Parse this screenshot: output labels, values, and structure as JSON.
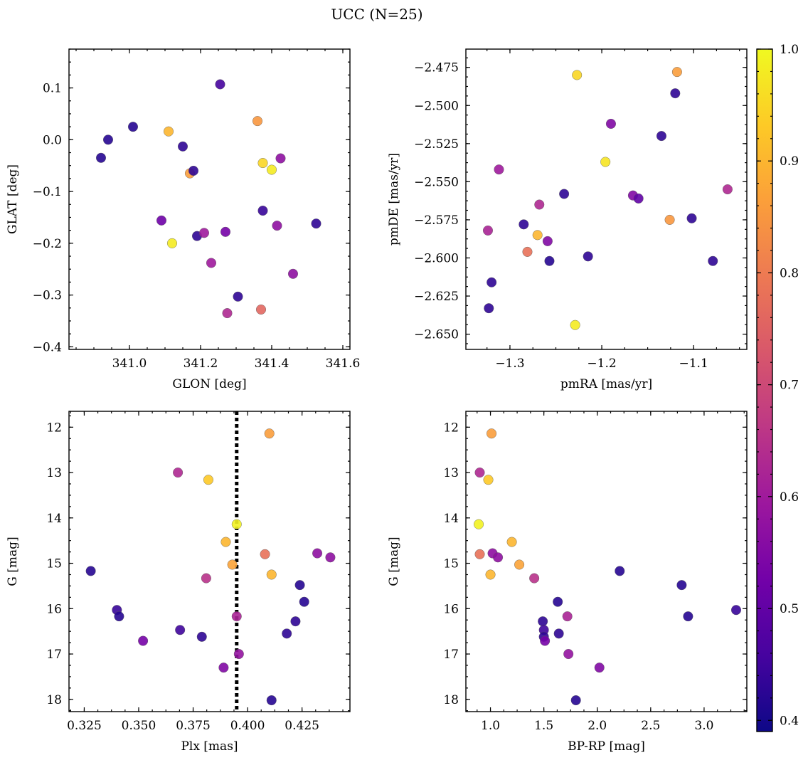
{
  "title": "UCC (N=25)",
  "colorbar": {
    "range": [
      0.39,
      1.0
    ],
    "ticks": [
      0.4,
      0.5,
      0.6,
      0.7,
      0.8,
      0.9,
      1.0
    ],
    "tick_labels": [
      "0.4",
      "0.5",
      "0.6",
      "0.7",
      "0.8",
      "0.9",
      "1.0"
    ],
    "colormap": "plasma"
  },
  "chart_data": [
    {
      "type": "scatter",
      "id": "glon-glat",
      "xlabel": "GLON [deg]",
      "ylabel": "GLAT [deg]",
      "xlim": [
        340.83,
        341.62
      ],
      "ylim": [
        -0.405,
        0.175
      ],
      "xticks": [
        341.0,
        341.2,
        341.4,
        341.6
      ],
      "xtick_labels": [
        "341.0",
        "341.2",
        "341.4",
        "341.6"
      ],
      "yticks": [
        -0.4,
        -0.3,
        -0.2,
        -0.1,
        0.0,
        0.1
      ],
      "ytick_labels": [
        "−0.4",
        "−0.3",
        "−0.2",
        "−0.1",
        "0.0",
        "0.1"
      ],
      "points": [
        {
          "x": 340.92,
          "y": -0.035,
          "c": 0.42
        },
        {
          "x": 340.94,
          "y": 0.0,
          "c": 0.42
        },
        {
          "x": 341.01,
          "y": 0.025,
          "c": 0.42
        },
        {
          "x": 341.09,
          "y": -0.156,
          "c": 0.52
        },
        {
          "x": 341.11,
          "y": 0.016,
          "c": 0.9
        },
        {
          "x": 341.12,
          "y": -0.2,
          "c": 0.98
        },
        {
          "x": 341.15,
          "y": -0.013,
          "c": 0.43
        },
        {
          "x": 341.17,
          "y": -0.065,
          "c": 0.86
        },
        {
          "x": 341.18,
          "y": -0.06,
          "c": 0.43
        },
        {
          "x": 341.19,
          "y": -0.186,
          "c": 0.43
        },
        {
          "x": 341.21,
          "y": -0.18,
          "c": 0.6
        },
        {
          "x": 341.23,
          "y": -0.238,
          "c": 0.6
        },
        {
          "x": 341.255,
          "y": 0.107,
          "c": 0.46
        },
        {
          "x": 341.27,
          "y": -0.178,
          "c": 0.53
        },
        {
          "x": 341.275,
          "y": -0.335,
          "c": 0.63
        },
        {
          "x": 341.305,
          "y": -0.303,
          "c": 0.43
        },
        {
          "x": 341.36,
          "y": 0.036,
          "c": 0.85
        },
        {
          "x": 341.37,
          "y": -0.328,
          "c": 0.76
        },
        {
          "x": 341.375,
          "y": -0.045,
          "c": 0.95
        },
        {
          "x": 341.375,
          "y": -0.137,
          "c": 0.44
        },
        {
          "x": 341.4,
          "y": -0.058,
          "c": 0.98
        },
        {
          "x": 341.415,
          "y": -0.166,
          "c": 0.57
        },
        {
          "x": 341.425,
          "y": -0.036,
          "c": 0.57
        },
        {
          "x": 341.46,
          "y": -0.259,
          "c": 0.57
        },
        {
          "x": 341.525,
          "y": -0.162,
          "c": 0.43
        }
      ]
    },
    {
      "type": "scatter",
      "id": "pmra-pmde",
      "xlabel": "pmRA [mas/yr]",
      "ylabel": "pmDE [mas/yr]",
      "xlim": [
        -1.348,
        -1.042
      ],
      "ylim": [
        -2.66,
        -2.463
      ],
      "xticks": [
        -1.3,
        -1.2,
        -1.1
      ],
      "xtick_labels": [
        "−1.3",
        "−1.2",
        "−1.1"
      ],
      "yticks": [
        -2.65,
        -2.625,
        -2.6,
        -2.575,
        -2.55,
        -2.525,
        -2.5,
        -2.475
      ],
      "ytick_labels": [
        "−2.650",
        "−2.625",
        "−2.600",
        "−2.575",
        "−2.550",
        "−2.525",
        "−2.500",
        "−2.475"
      ],
      "points": [
        {
          "x": -1.324,
          "y": -2.582,
          "c": 0.62
        },
        {
          "x": -1.323,
          "y": -2.633,
          "c": 0.43
        },
        {
          "x": -1.32,
          "y": -2.616,
          "c": 0.43
        },
        {
          "x": -1.312,
          "y": -2.542,
          "c": 0.6
        },
        {
          "x": -1.285,
          "y": -2.578,
          "c": 0.43
        },
        {
          "x": -1.281,
          "y": -2.596,
          "c": 0.78
        },
        {
          "x": -1.27,
          "y": -2.585,
          "c": 0.9
        },
        {
          "x": -1.268,
          "y": -2.565,
          "c": 0.63
        },
        {
          "x": -1.259,
          "y": -2.589,
          "c": 0.55
        },
        {
          "x": -1.257,
          "y": -2.602,
          "c": 0.42
        },
        {
          "x": -1.241,
          "y": -2.558,
          "c": 0.43
        },
        {
          "x": -1.227,
          "y": -2.48,
          "c": 0.95
        },
        {
          "x": -1.229,
          "y": -2.644,
          "c": 0.98
        },
        {
          "x": -1.215,
          "y": -2.599,
          "c": 0.43
        },
        {
          "x": -1.196,
          "y": -2.537,
          "c": 0.97
        },
        {
          "x": -1.19,
          "y": -2.512,
          "c": 0.55
        },
        {
          "x": -1.166,
          "y": -2.559,
          "c": 0.55
        },
        {
          "x": -1.16,
          "y": -2.561,
          "c": 0.5
        },
        {
          "x": -1.135,
          "y": -2.52,
          "c": 0.43
        },
        {
          "x": -1.126,
          "y": -2.575,
          "c": 0.85
        },
        {
          "x": -1.12,
          "y": -2.492,
          "c": 0.43
        },
        {
          "x": -1.118,
          "y": -2.478,
          "c": 0.86
        },
        {
          "x": -1.102,
          "y": -2.574,
          "c": 0.43
        },
        {
          "x": -1.079,
          "y": -2.602,
          "c": 0.43
        },
        {
          "x": -1.063,
          "y": -2.555,
          "c": 0.63
        }
      ]
    },
    {
      "type": "scatter",
      "id": "plx-g",
      "xlabel": "Plx [mas]",
      "ylabel": "G [mag]",
      "xlim": [
        0.318,
        0.447
      ],
      "ylim": [
        18.27,
        11.65
      ],
      "xticks": [
        0.325,
        0.35,
        0.375,
        0.4,
        0.425
      ],
      "xtick_labels": [
        "0.325",
        "0.350",
        "0.375",
        "0.400",
        "0.425"
      ],
      "yticks": [
        12,
        13,
        14,
        15,
        16,
        17,
        18
      ],
      "ytick_labels": [
        "12",
        "13",
        "14",
        "15",
        "16",
        "17",
        "18"
      ],
      "vline_x": 0.395,
      "points": [
        {
          "x": 0.328,
          "y": 15.17,
          "c": 0.42
        },
        {
          "x": 0.34,
          "y": 16.03,
          "c": 0.44
        },
        {
          "x": 0.341,
          "y": 16.17,
          "c": 0.42
        },
        {
          "x": 0.352,
          "y": 16.71,
          "c": 0.53
        },
        {
          "x": 0.368,
          "y": 13.0,
          "c": 0.63
        },
        {
          "x": 0.369,
          "y": 16.47,
          "c": 0.45
        },
        {
          "x": 0.379,
          "y": 16.62,
          "c": 0.43
        },
        {
          "x": 0.381,
          "y": 15.33,
          "c": 0.65
        },
        {
          "x": 0.382,
          "y": 13.16,
          "c": 0.93
        },
        {
          "x": 0.389,
          "y": 17.3,
          "c": 0.55
        },
        {
          "x": 0.39,
          "y": 14.53,
          "c": 0.9
        },
        {
          "x": 0.393,
          "y": 15.03,
          "c": 0.87
        },
        {
          "x": 0.395,
          "y": 14.14,
          "c": 0.99
        },
        {
          "x": 0.395,
          "y": 16.17,
          "c": 0.62
        },
        {
          "x": 0.396,
          "y": 17.0,
          "c": 0.58
        },
        {
          "x": 0.408,
          "y": 14.8,
          "c": 0.78
        },
        {
          "x": 0.41,
          "y": 12.14,
          "c": 0.86
        },
        {
          "x": 0.411,
          "y": 15.25,
          "c": 0.9
        },
        {
          "x": 0.411,
          "y": 18.02,
          "c": 0.42
        },
        {
          "x": 0.418,
          "y": 16.55,
          "c": 0.43
        },
        {
          "x": 0.422,
          "y": 16.28,
          "c": 0.43
        },
        {
          "x": 0.424,
          "y": 15.48,
          "c": 0.42
        },
        {
          "x": 0.426,
          "y": 15.85,
          "c": 0.42
        },
        {
          "x": 0.432,
          "y": 14.78,
          "c": 0.57
        },
        {
          "x": 0.438,
          "y": 14.87,
          "c": 0.57
        }
      ]
    },
    {
      "type": "scatter",
      "id": "bprp-g",
      "xlabel": "BP-RP [mag]",
      "ylabel": "G [mag]",
      "xlim": [
        0.77,
        3.4
      ],
      "ylim": [
        18.27,
        11.65
      ],
      "xticks": [
        1.0,
        1.5,
        2.0,
        2.5,
        3.0
      ],
      "xtick_labels": [
        "1.0",
        "1.5",
        "2.0",
        "2.5",
        "3.0"
      ],
      "yticks": [
        12,
        13,
        14,
        15,
        16,
        17,
        18
      ],
      "ytick_labels": [
        "12",
        "13",
        "14",
        "15",
        "16",
        "17",
        "18"
      ],
      "points": [
        {
          "x": 0.89,
          "y": 14.14,
          "c": 0.99
        },
        {
          "x": 0.9,
          "y": 13.0,
          "c": 0.63
        },
        {
          "x": 0.9,
          "y": 14.8,
          "c": 0.78
        },
        {
          "x": 0.98,
          "y": 13.16,
          "c": 0.93
        },
        {
          "x": 1.0,
          "y": 15.25,
          "c": 0.9
        },
        {
          "x": 1.01,
          "y": 12.14,
          "c": 0.86
        },
        {
          "x": 1.02,
          "y": 14.78,
          "c": 0.57
        },
        {
          "x": 1.07,
          "y": 14.87,
          "c": 0.57
        },
        {
          "x": 1.2,
          "y": 14.53,
          "c": 0.9
        },
        {
          "x": 1.27,
          "y": 15.03,
          "c": 0.87
        },
        {
          "x": 1.41,
          "y": 15.33,
          "c": 0.65
        },
        {
          "x": 1.49,
          "y": 16.28,
          "c": 0.43
        },
        {
          "x": 1.5,
          "y": 16.47,
          "c": 0.45
        },
        {
          "x": 1.5,
          "y": 16.62,
          "c": 0.43
        },
        {
          "x": 1.51,
          "y": 16.71,
          "c": 0.53
        },
        {
          "x": 1.63,
          "y": 15.85,
          "c": 0.42
        },
        {
          "x": 1.64,
          "y": 16.55,
          "c": 0.43
        },
        {
          "x": 1.72,
          "y": 16.17,
          "c": 0.62
        },
        {
          "x": 1.73,
          "y": 17.0,
          "c": 0.58
        },
        {
          "x": 1.8,
          "y": 18.02,
          "c": 0.42
        },
        {
          "x": 2.02,
          "y": 17.3,
          "c": 0.55
        },
        {
          "x": 2.21,
          "y": 15.17,
          "c": 0.42
        },
        {
          "x": 2.79,
          "y": 15.48,
          "c": 0.42
        },
        {
          "x": 2.85,
          "y": 16.17,
          "c": 0.42
        },
        {
          "x": 3.3,
          "y": 16.03,
          "c": 0.44
        }
      ]
    }
  ]
}
